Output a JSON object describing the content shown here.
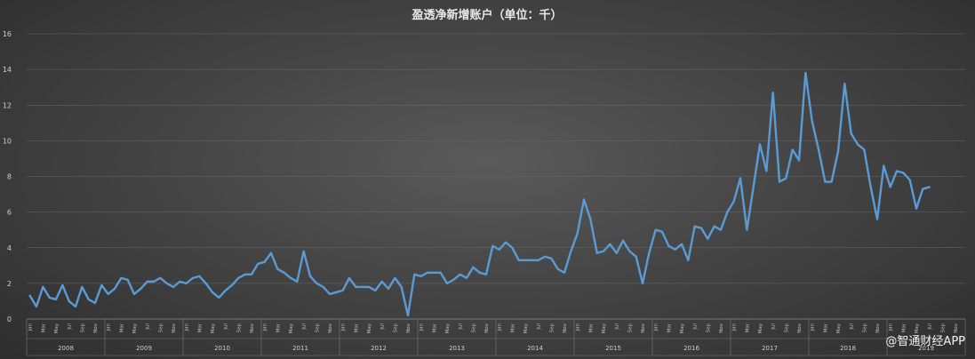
{
  "chart_data": {
    "type": "line",
    "title": "盈透净新增账户（单位：千）",
    "ylim": [
      0,
      16
    ],
    "y_ticks": [
      0,
      2,
      4,
      6,
      8,
      10,
      12,
      14,
      16
    ],
    "grid": true,
    "month_tick_labels": [
      "Jan",
      "Mar",
      "May",
      "Jul",
      "Sep",
      "Nov"
    ],
    "years": [
      "2008",
      "2009",
      "2010",
      "2011",
      "2012",
      "2013",
      "2014",
      "2015",
      "2016",
      "2017",
      "2018",
      "2019"
    ],
    "series": [
      {
        "color": "#5b9bd5",
        "values": [
          1.3,
          0.7,
          1.8,
          1.2,
          1.1,
          1.9,
          1.0,
          0.7,
          1.8,
          1.1,
          0.9,
          1.9,
          1.4,
          1.7,
          2.3,
          2.2,
          1.4,
          1.7,
          2.1,
          2.1,
          2.3,
          2.0,
          1.8,
          2.1,
          2.0,
          2.3,
          2.4,
          2.0,
          1.5,
          1.2,
          1.6,
          1.9,
          2.3,
          2.5,
          2.5,
          3.1,
          3.2,
          3.7,
          2.8,
          2.6,
          2.3,
          2.1,
          3.8,
          2.4,
          2.0,
          1.8,
          1.4,
          1.5,
          1.6,
          2.3,
          1.8,
          1.8,
          1.8,
          1.6,
          2.1,
          1.7,
          2.3,
          1.8,
          0.2,
          2.5,
          2.4,
          2.6,
          2.6,
          2.6,
          2.0,
          2.2,
          2.5,
          2.3,
          2.9,
          2.6,
          2.5,
          4.1,
          3.9,
          4.3,
          4.0,
          3.3,
          3.3,
          3.3,
          3.3,
          3.5,
          3.4,
          2.8,
          2.6,
          3.8,
          4.8,
          6.7,
          5.6,
          3.7,
          3.8,
          4.2,
          3.7,
          4.4,
          3.8,
          3.5,
          2.0,
          3.7,
          5.0,
          4.9,
          4.1,
          3.9,
          4.2,
          3.3,
          5.2,
          5.1,
          4.5,
          5.2,
          5.0,
          6.0,
          6.6,
          7.9,
          5.0,
          7.4,
          9.8,
          8.3,
          12.7,
          7.7,
          7.9,
          9.5,
          8.9,
          13.8,
          11.1,
          9.5,
          7.7,
          7.7,
          9.4,
          13.2,
          10.4,
          9.8,
          9.5,
          7.4,
          5.6,
          8.6,
          7.4,
          8.3,
          8.2,
          7.8,
          6.2,
          7.3,
          7.4
        ]
      }
    ]
  },
  "watermark": "@智通财经APP"
}
